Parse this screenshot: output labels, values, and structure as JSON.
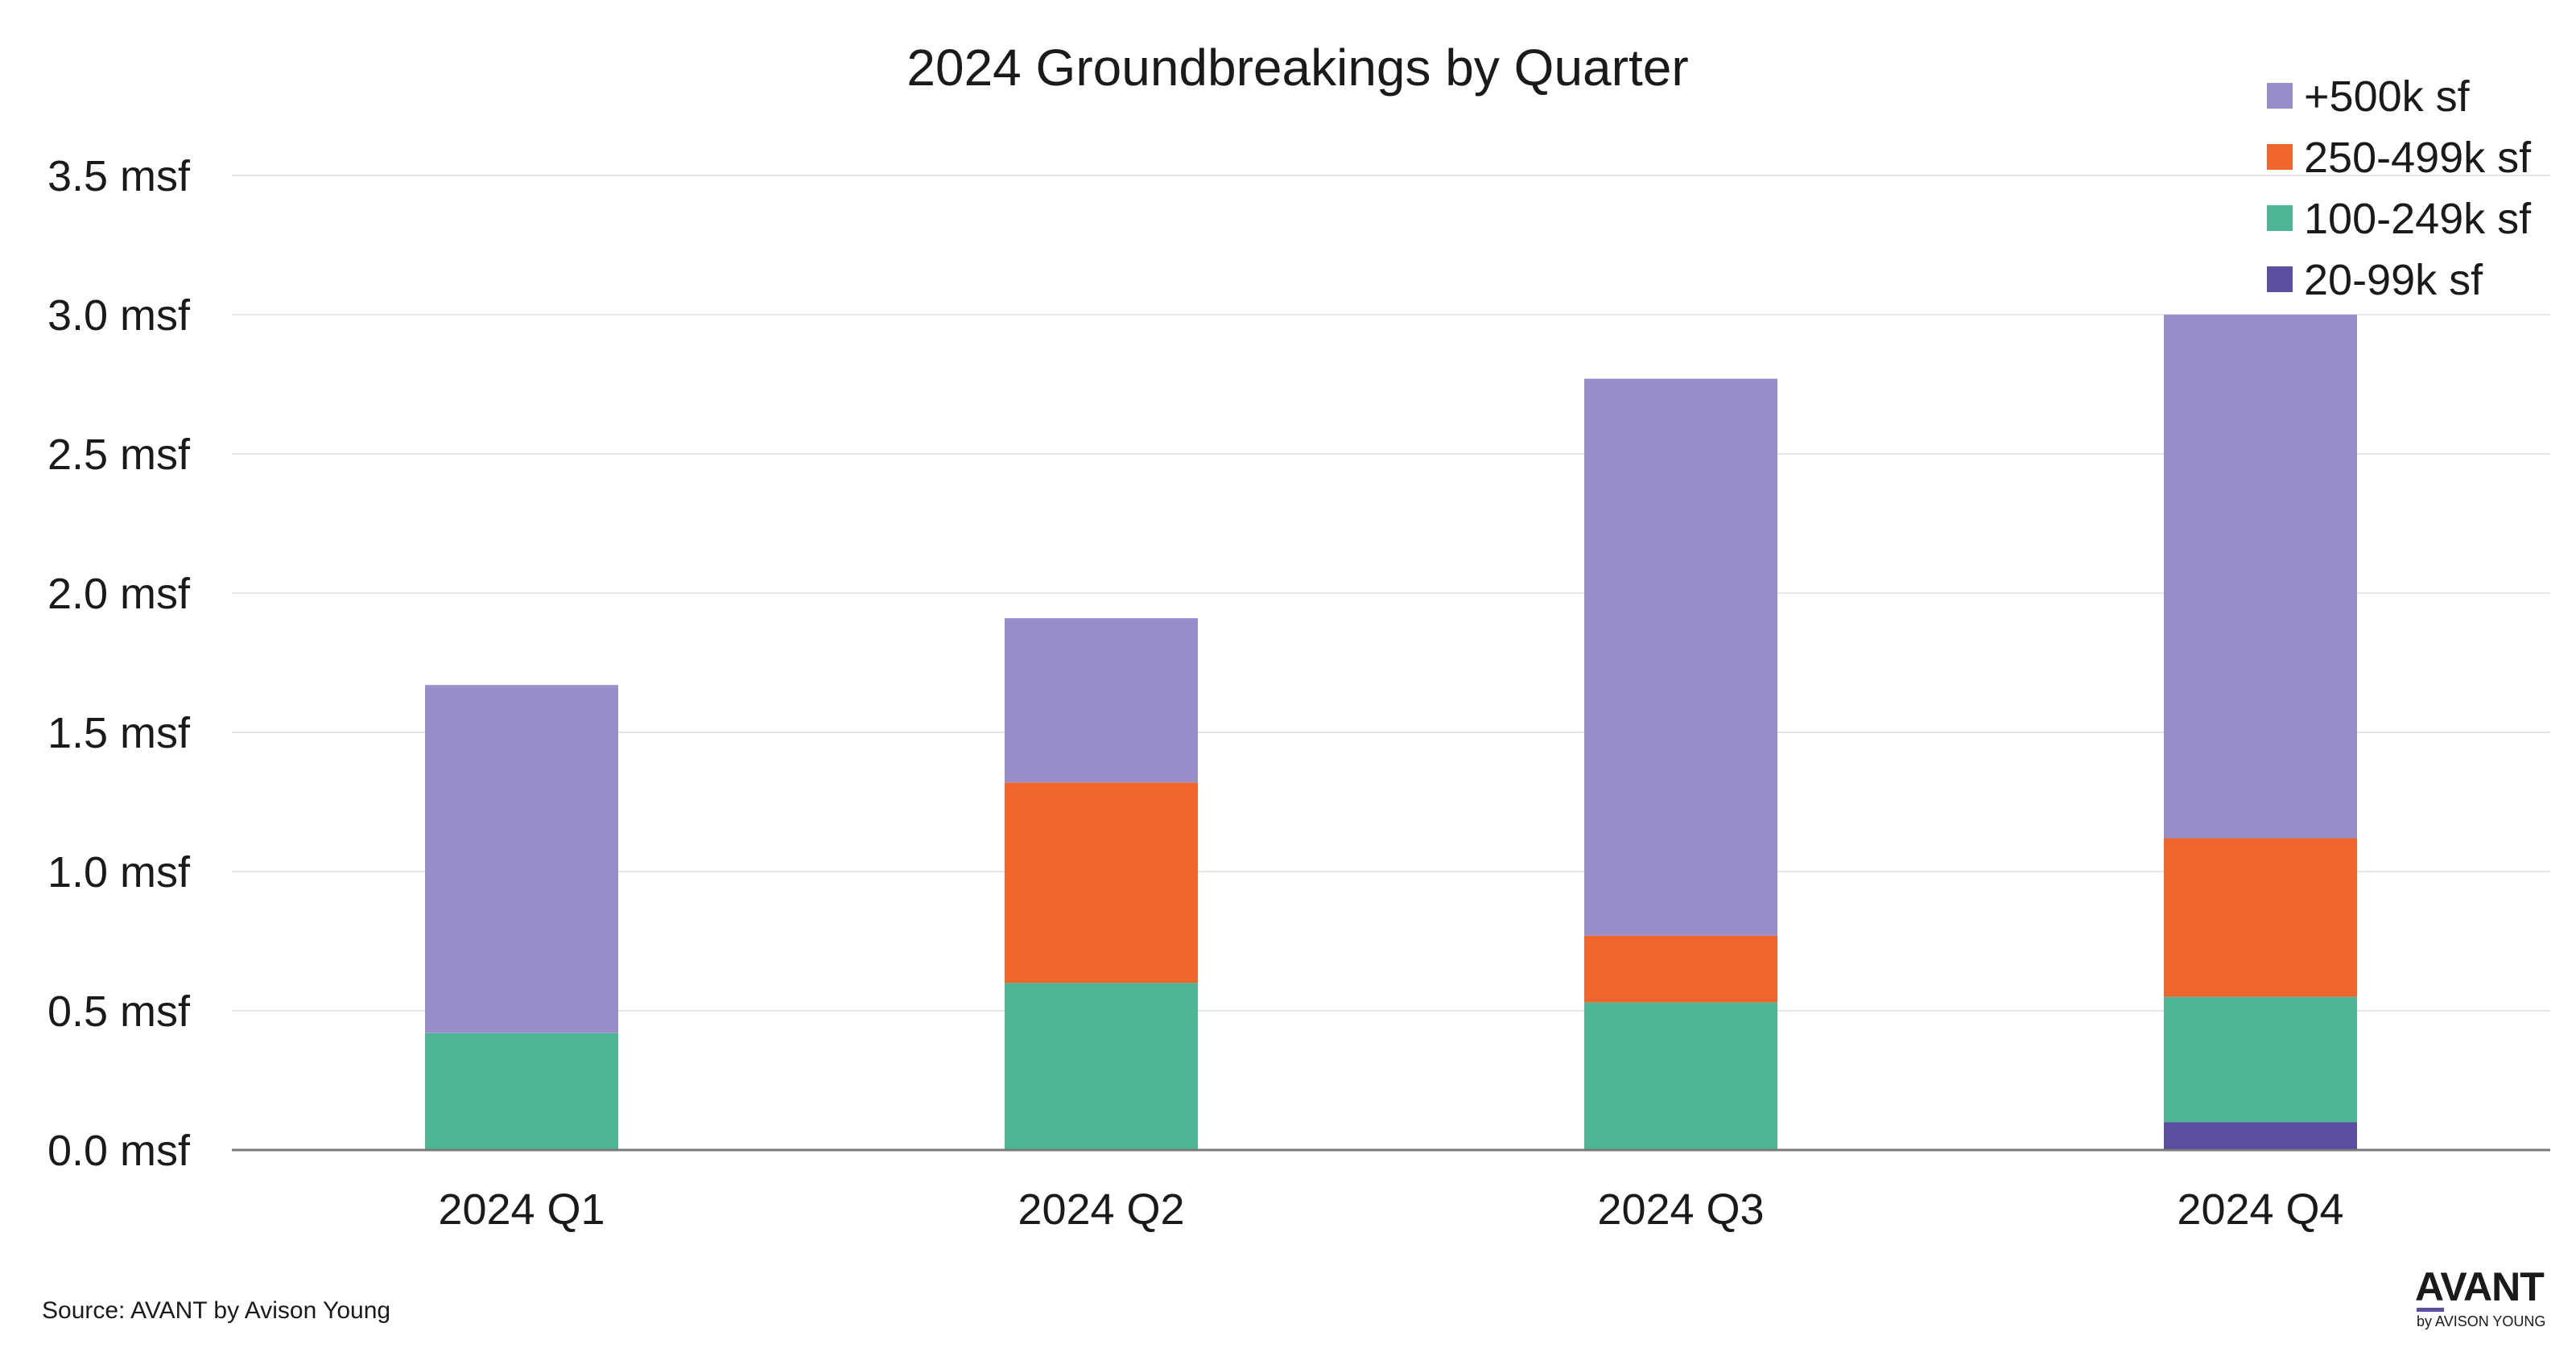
{
  "chart_data": {
    "type": "bar",
    "stacked": true,
    "title": "2024 Groundbreakings by Quarter",
    "xlabel": "",
    "ylabel": "",
    "categories": [
      "2024 Q1",
      "2024 Q2",
      "2024 Q3",
      "2024 Q4"
    ],
    "series": [
      {
        "name": "20-99k sf",
        "color": "#5b4ea0",
        "values": [
          0.0,
          0.0,
          0.0,
          0.1
        ]
      },
      {
        "name": "100-249k sf",
        "color": "#4fb597",
        "values": [
          0.42,
          0.6,
          0.53,
          0.45
        ]
      },
      {
        "name": "250-499k sf",
        "color": "#ee662c",
        "values": [
          0.0,
          0.72,
          0.24,
          0.57
        ]
      },
      {
        "name": "+500k sf",
        "color": "#978ecb",
        "values": [
          1.25,
          0.59,
          2.0,
          1.88
        ]
      }
    ],
    "ylim": [
      0,
      3.5
    ],
    "y_ticks": [
      0.0,
      0.5,
      1.0,
      1.5,
      2.0,
      2.5,
      3.0,
      3.5
    ],
    "y_tick_labels": [
      "0.0 msf",
      "0.5 msf",
      "1.0 msf",
      "1.5 msf",
      "2.0 msf",
      "2.5 msf",
      "3.0 msf",
      "3.5 msf"
    ],
    "legend_order": [
      "+500k sf",
      "250-499k sf",
      "100-249k sf",
      "20-99k sf"
    ],
    "legend_position": "top-right",
    "grid": true
  },
  "footer": {
    "source": "Source: AVANT by Avison Young"
  },
  "brand": {
    "wordmark": "AVANT",
    "byline": "by AVISON YOUNG"
  }
}
